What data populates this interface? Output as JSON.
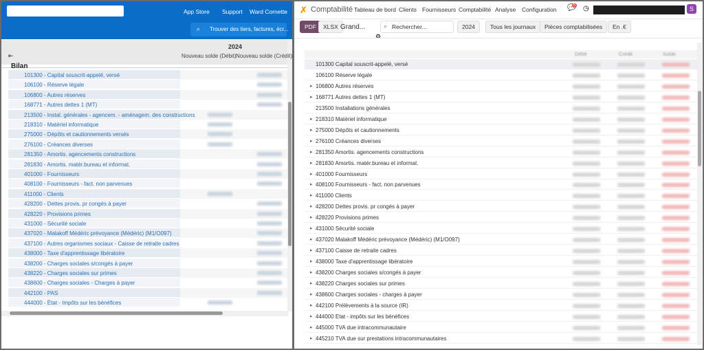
{
  "left": {
    "menu": [
      "App Store",
      "Support",
      "Ward Cornette"
    ],
    "search": "Trouver des tiers, factures, écr...",
    "year": "2024",
    "columns": [
      "Nouveau solde (Débit)",
      "Nouveau solde (Crédit)"
    ],
    "section": "Bilan",
    "rows": [
      {
        "label": "101300 - Capital souscrit-appelé, versé",
        "blurred_column": "credit"
      },
      {
        "label": "106100 - Réserve légale",
        "blurred_column": "credit"
      },
      {
        "label": "106800 - Autres réserves",
        "blurred_column": "credit"
      },
      {
        "label": "168771 - Autres dettes 1 (MT)",
        "blurred_column": "credit"
      },
      {
        "label": "213500 - Instal. générales - agencem. - aménagem. des constructions",
        "blurred_column": "debit"
      },
      {
        "label": "218310 - Matériel informatique",
        "blurred_column": "debit"
      },
      {
        "label": "275000 - Dépôts et cautionnements versés",
        "blurred_column": "debit"
      },
      {
        "label": "276100 - Créances diverses",
        "blurred_column": "debit"
      },
      {
        "label": "281350 - Amortis. agencements constructions",
        "blurred_column": "credit"
      },
      {
        "label": "281830 - Amortis. matér.bureau et informat.",
        "blurred_column": "credit"
      },
      {
        "label": "401000 - Fournisseurs",
        "blurred_column": "credit"
      },
      {
        "label": "408100 - Fournisseurs - fact. non parvenues",
        "blurred_column": "credit"
      },
      {
        "label": "411000 - Clients",
        "blurred_column": "debit"
      },
      {
        "label": "428200 - Dettes provis. pr congés à payer",
        "blurred_column": "credit"
      },
      {
        "label": "428220 - Provisions primes",
        "blurred_column": "credit"
      },
      {
        "label": "431000 - Sécurité sociale",
        "blurred_column": "credit"
      },
      {
        "label": "437020 - Malakoff Médéric prévoyance (Médéric) (M1/O097)",
        "blurred_column": "credit"
      },
      {
        "label": "437100 - Autres organismes sociaux - Caisse de retraite cadres",
        "blurred_column": "credit"
      },
      {
        "label": "438000 - Taxe d'apprentissage libératoire",
        "blurred_column": "credit"
      },
      {
        "label": "438200 - Charges sociales s/congés à payer",
        "blurred_column": "credit"
      },
      {
        "label": "438220 - Charges sociales sur primes",
        "blurred_column": "credit"
      },
      {
        "label": "438600 - Charges sociales - Charges à payer",
        "blurred_column": "credit"
      },
      {
        "label": "442100 - PAS",
        "blurred_column": "credit"
      },
      {
        "label": "444000 - État - Impôts sur les bénéfices",
        "blurred_column": "debit"
      }
    ]
  },
  "right": {
    "app": "Comptabilité",
    "nav": [
      "Tableau de bord",
      "Clients",
      "Fournisseurs",
      "Comptabilité",
      "Analyse",
      "Configuration"
    ],
    "badge": "5",
    "buttons": [
      "PDF",
      "XLSX"
    ],
    "report": "Grand...",
    "search": "Rechercher...",
    "filters": [
      "2024",
      "Tous les journaux",
      "Pièces comptabilisées",
      "En .€"
    ],
    "columns": [
      "Débit",
      "Crédit",
      "Solde"
    ],
    "rows": [
      {
        "label": "101300 Capital souscrit-appelé, versé",
        "expandable": false
      },
      {
        "label": "106100 Réserve légale",
        "expandable": false
      },
      {
        "label": "106800 Autres réserves",
        "expandable": true
      },
      {
        "label": "168771 Autres dettes 1 (MT)",
        "expandable": true
      },
      {
        "label": "213500 Installations générales",
        "expandable": false
      },
      {
        "label": "218310 Matériel informatique",
        "expandable": true
      },
      {
        "label": "275000 Dépôts et cautionnements",
        "expandable": true
      },
      {
        "label": "276100 Créances diverses",
        "expandable": true
      },
      {
        "label": "281350 Amortis. agencements constructions",
        "expandable": true
      },
      {
        "label": "281830 Amortis. matér.bureau et informat.",
        "expandable": true
      },
      {
        "label": "401000 Fournisseurs",
        "expandable": true
      },
      {
        "label": "408100 Fournisseurs - fact. non parvenues",
        "expandable": true
      },
      {
        "label": "411000 Clients",
        "expandable": true
      },
      {
        "label": "428200 Dettes provis. pr congés à payer",
        "expandable": true
      },
      {
        "label": "428220 Provisions primes",
        "expandable": true
      },
      {
        "label": "431000 Sécurité sociale",
        "expandable": true
      },
      {
        "label": "437020 Malakoff Médéric prévoyance (Médéric) (M1/O097)",
        "expandable": true
      },
      {
        "label": "437100 Caisse de retraite cadres",
        "expandable": true
      },
      {
        "label": "438000 Taxe d'apprentissage libératoire",
        "expandable": true
      },
      {
        "label": "438200 Charges sociales s/congés à payer",
        "expandable": true
      },
      {
        "label": "438220 Charges sociales sur primes",
        "expandable": true
      },
      {
        "label": "438600 Charges sociales - charges à payer",
        "expandable": true
      },
      {
        "label": "442100 Prélèvements à la source (IR)",
        "expandable": true
      },
      {
        "label": "444000 Etat - impôts sur les bénéfices",
        "expandable": true
      },
      {
        "label": "445000 TVA due intracommunautaire",
        "expandable": true
      },
      {
        "label": "445210 TVA due sur prestations intracommunautaires",
        "expandable": true
      }
    ]
  }
}
